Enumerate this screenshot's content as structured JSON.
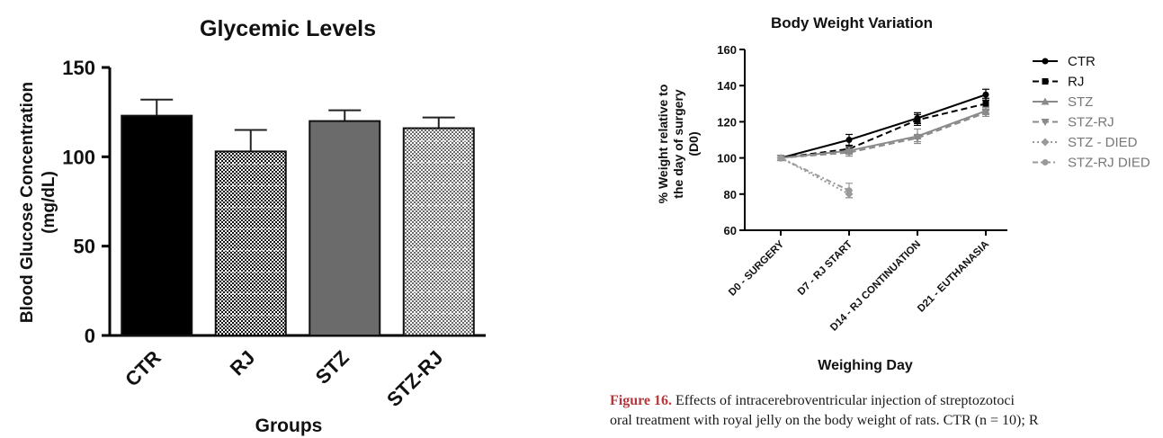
{
  "chart_data": [
    {
      "type": "bar",
      "title": "Glycemic Levels",
      "xlabel": "Groups",
      "ylabel": "Blood Glucose Concentration (mg/dL)",
      "ylabel_lines": [
        "Blood Glucose Concentration",
        "(mg/dL)"
      ],
      "categories": [
        "CTR",
        "RJ",
        "STZ",
        "STZ-RJ"
      ],
      "values": [
        123,
        103,
        120,
        116
      ],
      "errors": [
        9,
        12,
        6,
        6
      ],
      "ylim": [
        0,
        150
      ],
      "yticks": [
        0,
        50,
        100,
        150
      ],
      "fills": [
        "solid-black",
        "dark-checker",
        "solid-gray",
        "light-checker"
      ],
      "colors": {
        "bar_black": "#000000",
        "bar_gray": "#6b6b6b"
      }
    },
    {
      "type": "line",
      "title": "Body Weight Variation",
      "xlabel": "Weighing Day",
      "ylabel": "% Weight relative to the day of surgery (D0)",
      "ylabel_lines": [
        "% Weight relative to",
        "the day of surgery",
        "(D0)"
      ],
      "categories": [
        "D0 - SURGERY",
        "D7 - RJ START",
        "D14 - RJ CONTINUATION",
        "D21 - EUTHANASIA"
      ],
      "ylim": [
        60,
        160
      ],
      "yticks": [
        60,
        80,
        100,
        120,
        140,
        160
      ],
      "legend_position": "right",
      "series": [
        {
          "name": "CTR",
          "values": [
            100,
            110,
            122,
            135
          ],
          "errors": [
            0,
            3,
            3,
            3
          ],
          "color": "#000000",
          "dash": "solid",
          "marker": "circle"
        },
        {
          "name": "RJ",
          "values": [
            100,
            105,
            121,
            130
          ],
          "errors": [
            0,
            2,
            3,
            3
          ],
          "color": "#000000",
          "dash": "dashed",
          "marker": "square"
        },
        {
          "name": "STZ",
          "values": [
            100,
            104,
            112,
            126
          ],
          "errors": [
            0,
            2,
            4,
            2
          ],
          "color": "#8a8a8a",
          "dash": "solid",
          "marker": "triangle-up"
        },
        {
          "name": "STZ-RJ",
          "values": [
            100,
            103,
            111,
            125
          ],
          "errors": [
            0,
            2,
            2,
            2
          ],
          "color": "#8a8a8a",
          "dash": "dashed",
          "marker": "triangle-down"
        },
        {
          "name": "STZ - DIED",
          "values": [
            100,
            80,
            null,
            null
          ],
          "errors": [
            0,
            2,
            0,
            0
          ],
          "color": "#9a9a9a",
          "dash": "dotted",
          "marker": "diamond"
        },
        {
          "name": "STZ-RJ DIED",
          "values": [
            100,
            82,
            null,
            null
          ],
          "errors": [
            0,
            4,
            0,
            0
          ],
          "color": "#9a9a9a",
          "dash": "dashdot",
          "marker": "circle"
        }
      ]
    }
  ],
  "caption": {
    "label": "Figure 16.",
    "line1": "Effects of intracerebroventricular injection of streptozotoci",
    "line2": "oral treatment with royal jelly on the body weight of rats. CTR (n = 10); R"
  }
}
